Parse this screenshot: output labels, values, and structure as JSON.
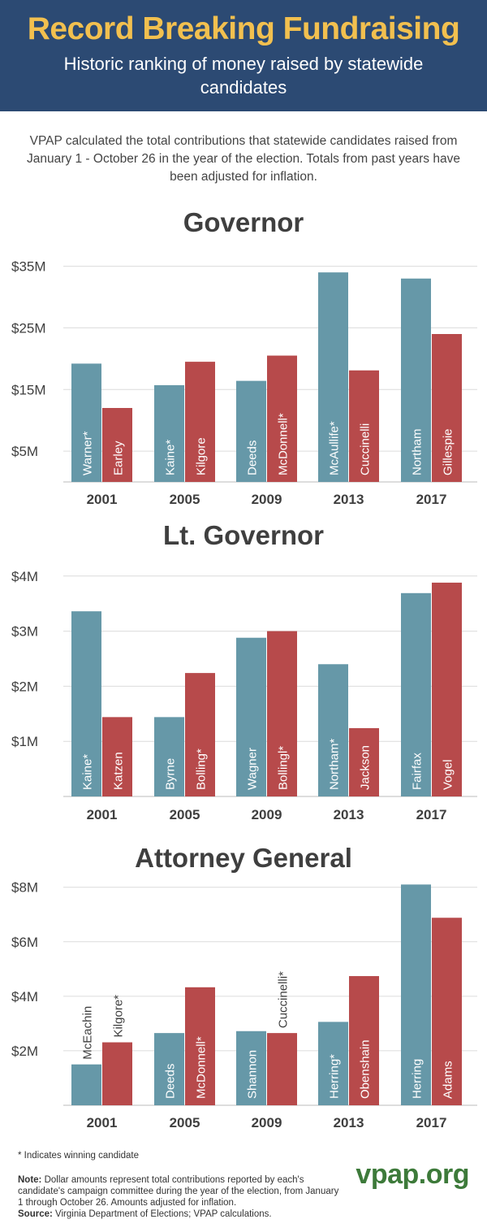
{
  "header": {
    "title": "Record Breaking Fundraising",
    "subtitle": "Historic ranking of money raised by statewide candidates"
  },
  "intro": "VPAP calculated the total contributions that statewide candidates raised from January 1 - October 26 in the year of the election. Totals from past years have been adjusted for inflation.",
  "colors": {
    "blue": "#6698a8",
    "red": "#b74a4b",
    "header": "#2c4a73",
    "title": "#f2c04f",
    "brand": "#3d7a3a"
  },
  "chart_data": [
    {
      "type": "bar",
      "title": "Governor",
      "categories": [
        "2001",
        "2005",
        "2009",
        "2013",
        "2017"
      ],
      "tick_labels": [
        "$35M",
        "$25M",
        "$15M",
        "$5M"
      ],
      "tick_values": [
        35,
        25,
        15,
        5
      ],
      "ylim": [
        0,
        36
      ],
      "unit": "millions of dollars",
      "series": [
        {
          "name": "blue",
          "labels": [
            "Warner*",
            "Kaine*",
            "Deeds",
            "McAullife*",
            "Northam"
          ],
          "values": [
            19.2,
            15.7,
            16.4,
            34.0,
            33.0
          ]
        },
        {
          "name": "red",
          "labels": [
            "Earley",
            "Kilgore",
            "McDonnell*",
            "Cuccinelli",
            "Gillespie"
          ],
          "values": [
            12.0,
            19.5,
            20.5,
            18.1,
            24.0
          ]
        }
      ]
    },
    {
      "type": "bar",
      "title": "Lt. Governor",
      "categories": [
        "2001",
        "2005",
        "2009",
        "2013",
        "2017"
      ],
      "tick_labels": [
        "$4M",
        "$3M",
        "$2M",
        "$1M"
      ],
      "tick_values": [
        4,
        3,
        2,
        1
      ],
      "ylim": [
        0,
        4.1
      ],
      "unit": "millions of dollars",
      "series": [
        {
          "name": "blue",
          "labels": [
            "Kaine*",
            "Byrne",
            "Wagner",
            "Northam*",
            "Fairfax"
          ],
          "values": [
            3.36,
            1.44,
            2.88,
            2.4,
            3.69
          ]
        },
        {
          "name": "red",
          "labels": [
            "Katzen",
            "Bolling*",
            "Bollingl*",
            "Jackson",
            "Vogel"
          ],
          "values": [
            1.44,
            2.24,
            3.0,
            1.24,
            3.88
          ]
        }
      ]
    },
    {
      "type": "bar",
      "title": "Attorney General",
      "categories": [
        "2001",
        "2005",
        "2009",
        "2013",
        "2017"
      ],
      "tick_labels": [
        "$8M",
        "$6M",
        "$4M",
        "$2M"
      ],
      "tick_values": [
        8,
        6,
        4,
        2
      ],
      "ylim": [
        0,
        8.2
      ],
      "unit": "millions of dollars",
      "series": [
        {
          "name": "blue",
          "labels": [
            "McEachin",
            "Deeds",
            "Shannon",
            "Herring*",
            "Herring"
          ],
          "values": [
            1.5,
            2.65,
            2.72,
            3.06,
            8.1
          ]
        },
        {
          "name": "red",
          "labels": [
            "Kilgore*",
            "McDonnell*",
            "Cuccinelli*",
            "Obenshain",
            "Adams"
          ],
          "values": [
            2.31,
            4.33,
            2.65,
            4.74,
            6.88
          ]
        }
      ]
    }
  ],
  "footnote": "* Indicates winning candidate",
  "note": {
    "label": "Note:",
    "text": "Dollar amounts represent total contributions reported by each's candidate's campaign committee during the year of the election, from January 1 through October 26. Amounts adjusted for inflation.",
    "source_label": "Source:",
    "source_text": "Virginia Department of Elections; VPAP calculations."
  },
  "brand": "vpap.org"
}
